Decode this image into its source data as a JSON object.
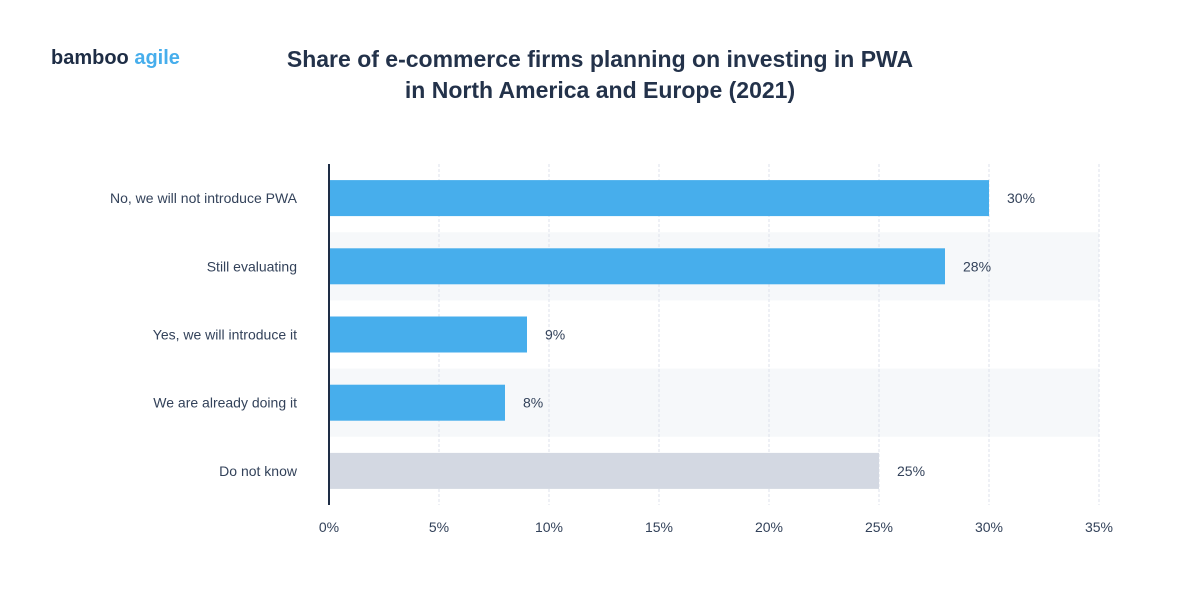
{
  "logo": {
    "part1": "bamboo",
    "part2": "agile"
  },
  "title_line1": "Share of e-commerce firms planning on investing in PWA",
  "title_line2": "in North America and Europe (2021)",
  "colors": {
    "primary_bar": "#47aeec",
    "unknown_bar": "#d3d8e2",
    "band": "#f6f8fa",
    "axis": "#1e2d45",
    "text": "#33425a"
  },
  "chart_data": {
    "type": "bar",
    "orientation": "horizontal",
    "title": "Share of e-commerce firms planning on investing in PWA in North America and Europe (2021)",
    "xlabel": "",
    "ylabel": "",
    "categories": [
      "No, we will not introduce PWA",
      "Still evaluating",
      "Yes, we will introduce it",
      "We are already doing it",
      "Do not know"
    ],
    "values": [
      30,
      28,
      9,
      8,
      25
    ],
    "value_labels": [
      "30%",
      "28%",
      "9%",
      "8%",
      "25%"
    ],
    "bar_colors": [
      "#47aeec",
      "#47aeec",
      "#47aeec",
      "#47aeec",
      "#d3d8e2"
    ],
    "xlim": [
      0,
      35
    ],
    "xticks": [
      0,
      5,
      10,
      15,
      20,
      25,
      30,
      35
    ],
    "xtick_labels": [
      "0%",
      "5%",
      "10%",
      "15%",
      "20%",
      "25%",
      "30%",
      "35%"
    ],
    "grid": true,
    "legend": "none"
  }
}
